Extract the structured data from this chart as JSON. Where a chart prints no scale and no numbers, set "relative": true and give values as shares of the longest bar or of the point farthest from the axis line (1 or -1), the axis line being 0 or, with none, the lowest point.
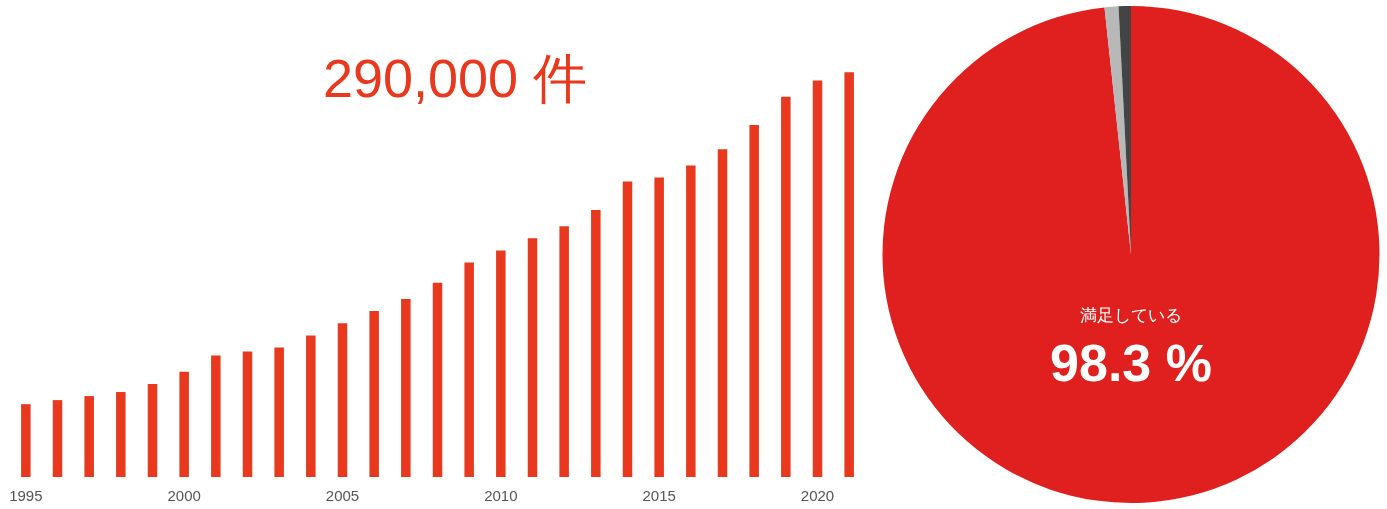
{
  "chart_data": [
    {
      "type": "bar",
      "relative": true,
      "categories": [
        "1995",
        null,
        null,
        null,
        null,
        "2000",
        null,
        null,
        null,
        null,
        "2005",
        null,
        null,
        null,
        null,
        "2010",
        null,
        null,
        null,
        null,
        "2015",
        null,
        null,
        null,
        null,
        "2020",
        null
      ],
      "values": [
        0.18,
        0.19,
        0.2,
        0.21,
        0.23,
        0.26,
        0.3,
        0.31,
        0.32,
        0.35,
        0.38,
        0.41,
        0.44,
        0.48,
        0.53,
        0.56,
        0.59,
        0.62,
        0.66,
        0.73,
        0.74,
        0.77,
        0.81,
        0.87,
        0.94,
        0.98,
        1
      ],
      "color": "#e8381e",
      "annotations": [
        "290,000 件"
      ]
    },
    {
      "type": "pie",
      "categories": [
        "満足している",
        null,
        null
      ],
      "values": [
        98.3,
        0.9,
        0.8
      ],
      "colors": [
        "#e0201e",
        "#b8b8b8",
        "#444444"
      ],
      "value_labels": [
        "98.3 %",
        null,
        null
      ]
    }
  ]
}
